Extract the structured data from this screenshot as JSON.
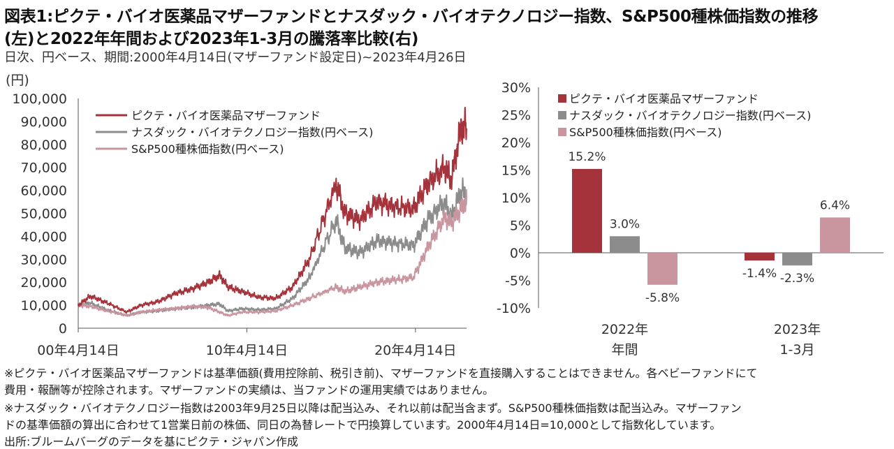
{
  "title_line1": "図表1:ピクテ・バイオ医薬品マザーファンドとナスダック・バイオテクノロジー指数、S&P500種株価指数の推移",
  "title_line2": "(左)と2022年年間および2023年1-3月の騰落率比較(右)",
  "subtitle": "日次、円ベース、期間:2000年4月14日(マザーファンド設定日)~2023年4月26日",
  "colors": {
    "pictet": "#a5333c",
    "nasdaq": "#8c8c8c",
    "sp500": "#c9959f"
  },
  "chart_data": [
    {
      "type": "line",
      "ylabel": "(円)",
      "ylim": [
        0,
        100000
      ],
      "yticks": [
        "100,000",
        "90,000",
        "80,000",
        "70,000",
        "60,000",
        "50,000",
        "40,000",
        "30,000",
        "20,000",
        "10,000",
        "0"
      ],
      "xlim": [
        "2000-04-14",
        "2023-04-26"
      ],
      "xticks": [
        {
          "date": "2000-04-14",
          "label": "00年4月14日"
        },
        {
          "date": "2010-04-14",
          "label": "10年4月14日"
        },
        {
          "date": "2020-04-14",
          "label": "20年4月14日"
        }
      ],
      "x": [
        "2000-04-14",
        "2001-01-01",
        "2002-01-01",
        "2003-03-01",
        "2004-01-01",
        "2005-01-01",
        "2006-01-01",
        "2007-01-01",
        "2008-01-01",
        "2008-09-01",
        "2009-03-01",
        "2010-01-01",
        "2011-01-01",
        "2012-01-01",
        "2013-01-01",
        "2014-01-01",
        "2015-08-01",
        "2016-02-01",
        "2017-01-01",
        "2018-01-01",
        "2019-01-01",
        "2020-03-01",
        "2021-01-01",
        "2022-01-01",
        "2022-06-01",
        "2023-01-01",
        "2023-04-26"
      ],
      "series": [
        {
          "name": "ピクテ・バイオ医薬品マザーファンド",
          "color": "#a5333c",
          "values": [
            10000,
            14000,
            11000,
            7000,
            10000,
            11500,
            15000,
            17000,
            20000,
            23000,
            18000,
            16000,
            13500,
            13000,
            18000,
            30000,
            63000,
            50000,
            47000,
            55000,
            53000,
            52000,
            63000,
            70000,
            65000,
            88000,
            87000
          ]
        },
        {
          "name": "ナスダック・バイオテクノロジー指数(円ベース)",
          "color": "#8c8c8c",
          "values": [
            10000,
            11000,
            8000,
            5500,
            7000,
            7500,
            8500,
            9000,
            10000,
            10500,
            7500,
            8500,
            8000,
            8500,
            13000,
            22000,
            47000,
            35000,
            33000,
            38000,
            37000,
            36000,
            47000,
            55000,
            48000,
            60000,
            58000
          ]
        },
        {
          "name": "S&P500種株価指数(円ベース)",
          "color": "#c9959f",
          "values": [
            10000,
            9500,
            7500,
            5500,
            7000,
            8000,
            8500,
            9500,
            9000,
            7000,
            5500,
            7000,
            7000,
            7500,
            10000,
            13000,
            18000,
            16000,
            18000,
            20000,
            21000,
            22000,
            35000,
            48000,
            46000,
            52000,
            56000
          ]
        }
      ]
    },
    {
      "type": "bar",
      "ylim": [
        -10,
        30
      ],
      "yticks": [
        "30%",
        "25%",
        "20%",
        "15%",
        "10%",
        "5%",
        "0%",
        "-5%",
        "-10%"
      ],
      "categories": [
        [
          "2022年",
          "年間"
        ],
        [
          "2023年",
          "1-3月"
        ]
      ],
      "series": [
        {
          "name": "ピクテ・バイオ医薬品マザーファンド",
          "color": "#a5333c",
          "values": [
            15.2,
            -1.4
          ],
          "labels": [
            "15.2%",
            "-1.4%"
          ]
        },
        {
          "name": "ナスダック・バイオテクノロジー指数(円ベース)",
          "color": "#8c8c8c",
          "values": [
            3.0,
            -2.3
          ],
          "labels": [
            "3.0%",
            "-2.3%"
          ]
        },
        {
          "name": "S&P500種株価指数(円ベース)",
          "color": "#c9959f",
          "values": [
            -5.8,
            6.4
          ],
          "labels": [
            "-5.8%",
            "6.4%"
          ]
        }
      ]
    }
  ],
  "notes": [
    "※ピクテ・バイオ医薬品マザーファンドは基準価額(費用控除前、税引き前)、マザーファンドを直接購入することはできません。各ベビーファンドにて",
    "費用・報酬等が控除されます。マザーファンドの実績は、当ファンドの運用実績ではありません。",
    "※ナスダック・バイオテクノロジー指数は2003年9月25日以降は配当込み、それ以前は配当含まず。S&P500種株価指数は配当込み。マザーファン",
    "ドの基準価額の算出に合わせて1営業日前の株価、同日の為替レートで円換算しています。2000年4月14日=10,000として指数化しています。",
    "出所:ブルームバーグのデータを基にピクテ・ジャパン作成"
  ]
}
